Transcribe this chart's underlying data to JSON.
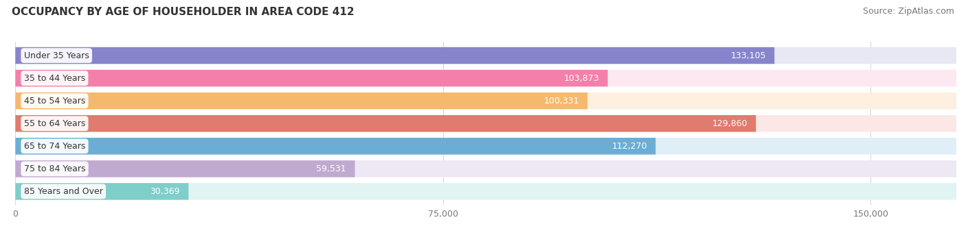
{
  "title": "OCCUPANCY BY AGE OF HOUSEHOLDER IN AREA CODE 412",
  "source": "Source: ZipAtlas.com",
  "categories": [
    "Under 35 Years",
    "35 to 44 Years",
    "45 to 54 Years",
    "55 to 64 Years",
    "65 to 74 Years",
    "75 to 84 Years",
    "85 Years and Over"
  ],
  "values": [
    133105,
    103873,
    100331,
    129860,
    112270,
    59531,
    30369
  ],
  "bar_colors": [
    "#8884cc",
    "#f47faa",
    "#f5b96e",
    "#e07b6e",
    "#6aaed6",
    "#c0aad0",
    "#7ececa"
  ],
  "bar_bg_colors": [
    "#e8e8f4",
    "#fde8f1",
    "#fdf0e0",
    "#fbe8e6",
    "#e0eef8",
    "#ede8f4",
    "#e0f4f4"
  ],
  "xlim_data": [
    0,
    150000
  ],
  "plot_max": 165000,
  "xticks": [
    0,
    75000,
    150000
  ],
  "xticklabels": [
    "0",
    "75,000",
    "150,000"
  ],
  "title_fontsize": 11,
  "source_fontsize": 9,
  "tick_fontsize": 9,
  "bar_label_fontsize": 9,
  "category_fontsize": 9,
  "background_color": "#ffffff"
}
